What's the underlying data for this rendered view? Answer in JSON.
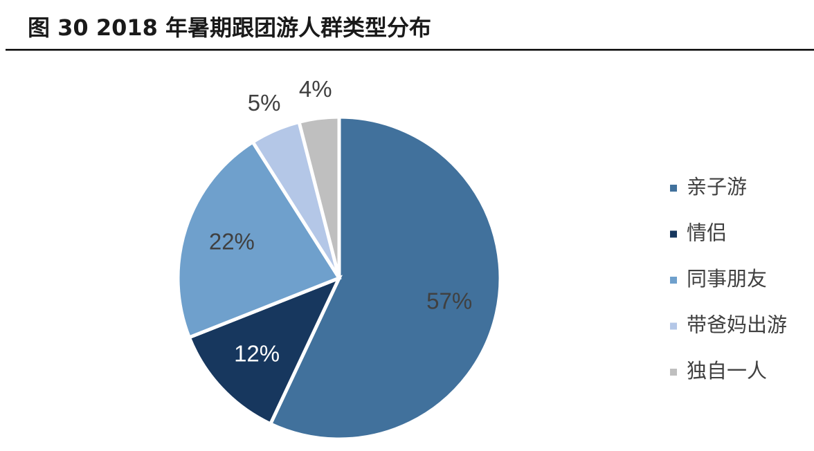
{
  "chart_data": {
    "type": "pie",
    "title": "图 30 2018 年暑期跟团游人群类型分布",
    "categories": [
      "亲子游",
      "情侣",
      "同事朋友",
      "带爸妈出游",
      "独自一人"
    ],
    "values": [
      57,
      12,
      22,
      5,
      4
    ],
    "value_labels": [
      "57%",
      "12%",
      "22%",
      "5%",
      "4%"
    ],
    "colors": [
      "#41719c",
      "#17375e",
      "#6fa0cc",
      "#b4c7e7",
      "#bfbfbf"
    ],
    "legend": "right"
  }
}
